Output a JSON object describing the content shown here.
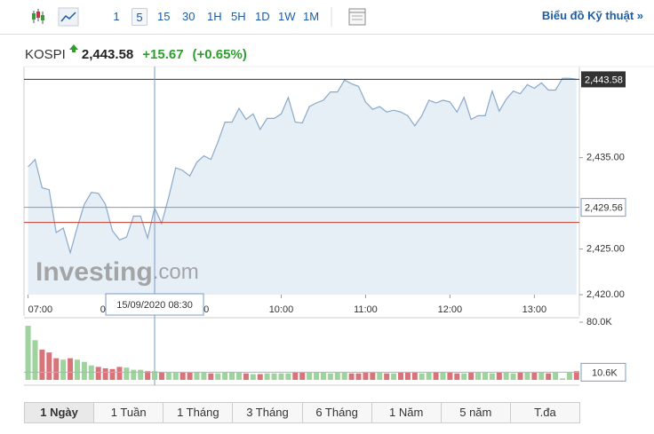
{
  "toolbar": {
    "intervals": [
      "1",
      "5",
      "15",
      "30",
      "1H",
      "5H",
      "1D",
      "1W",
      "1M"
    ],
    "selected_interval": "5",
    "link": "Biểu đồ Kỹ thuật »"
  },
  "header": {
    "symbol": "KOSPI",
    "price": "2,443.58",
    "change": "+15.67",
    "change_pct": "(+0.65%)"
  },
  "chart_data": [
    {
      "type": "area",
      "watermark": [
        "Invest",
        "ing",
        ".com"
      ],
      "color": "#8aa9c9",
      "fill": "#e6eef6",
      "x": [
        420,
        425,
        430,
        435,
        440,
        445,
        450,
        455,
        460,
        465,
        470,
        475,
        480,
        485,
        490,
        495,
        500,
        505,
        510,
        515,
        520,
        525,
        530,
        535,
        540,
        545,
        550,
        555,
        560,
        565,
        570,
        575,
        580,
        585,
        590,
        595,
        600,
        605,
        610,
        615,
        620,
        625,
        630,
        635,
        640,
        645,
        650,
        655,
        660,
        665,
        670,
        675,
        680,
        685,
        690,
        695,
        700,
        705,
        710,
        715,
        720,
        725,
        730,
        735,
        740,
        745,
        750,
        755,
        760,
        765,
        770,
        775,
        780,
        785,
        790,
        795,
        800,
        805,
        810
      ],
      "values": [
        2434.0,
        2434.8,
        2431.7,
        2431.5,
        2426.8,
        2427.3,
        2424.6,
        2427.4,
        2429.9,
        2431.2,
        2431.1,
        2429.9,
        2427.0,
        2426.0,
        2426.3,
        2428.6,
        2428.6,
        2426.2,
        2429.5,
        2427.8,
        2430.7,
        2433.9,
        2433.6,
        2433.0,
        2434.5,
        2435.2,
        2434.8,
        2436.7,
        2438.9,
        2438.9,
        2440.4,
        2439.2,
        2439.8,
        2438.1,
        2439.3,
        2439.3,
        2439.8,
        2441.6,
        2438.9,
        2438.8,
        2440.6,
        2441.0,
        2441.3,
        2442.2,
        2442.2,
        2443.5,
        2443.1,
        2442.8,
        2441.1,
        2440.3,
        2440.6,
        2440.0,
        2440.2,
        2440.0,
        2439.6,
        2438.5,
        2439.6,
        2441.3,
        2441.0,
        2441.3,
        2441.1,
        2440.0,
        2441.6,
        2439.2,
        2439.6,
        2439.6,
        2442.3,
        2440.1,
        2441.4,
        2442.3,
        2442.0,
        2443.0,
        2442.6,
        2443.2,
        2442.4,
        2442.4,
        2443.7,
        2443.7,
        2443.58
      ],
      "xlim": [
        419,
        812
      ],
      "ylim": [
        2420,
        2444.3
      ],
      "xticks": [
        {
          "value": 420,
          "label": "07:00"
        },
        {
          "value": 480,
          "label": "08:00"
        },
        {
          "value": 540,
          "label": "09:00"
        },
        {
          "value": 600,
          "label": "10:00"
        },
        {
          "value": 660,
          "label": "11:00"
        },
        {
          "value": 720,
          "label": "12:00"
        },
        {
          "value": 780,
          "label": "13:00"
        }
      ],
      "yticks": [
        {
          "value": 2420,
          "label": "2,420.00"
        },
        {
          "value": 2425,
          "label": "2,425.00"
        },
        {
          "value": 2435,
          "label": "2,435.00"
        }
      ],
      "last": {
        "value": 2443.58,
        "label": "2,443.58"
      },
      "reference_line": 2427.91,
      "crosshair": {
        "x": 510,
        "x_label": "15/09/2020 08:30",
        "y": {
          "value": 2429.56,
          "label": "2,429.56"
        }
      }
    },
    {
      "type": "bar",
      "up_color": "#9ed39e",
      "down_color": "#d9737a",
      "values": [
        75000,
        55000,
        42000,
        38000,
        30000,
        28000,
        30000,
        28000,
        25000,
        20000,
        18000,
        16000,
        15000,
        18000,
        17000,
        14000,
        14000,
        12000,
        12000,
        11000,
        10000,
        10000,
        10000,
        10000,
        11000,
        10000,
        9000,
        9000,
        10000,
        11000,
        10000,
        9000,
        8000,
        8000,
        9000,
        9000,
        9000,
        9000,
        10000,
        10000,
        10000,
        10000,
        10000,
        9000,
        10000,
        10000,
        9000,
        9000,
        10000,
        10000,
        10000,
        9000,
        9000,
        10000,
        10000,
        10000,
        9000,
        10000,
        11000,
        11000,
        10000,
        9000,
        9000,
        10000,
        10000,
        10000,
        9000,
        10000,
        10000,
        9000,
        10000,
        10000,
        10000,
        10000,
        9000,
        10000,
        2000,
        10000,
        12000
      ],
      "ylim": [
        0,
        80000
      ],
      "yticks": [
        {
          "value": 80000,
          "label": "80.0K"
        }
      ],
      "current": {
        "value": 10600,
        "label": "10.6K"
      }
    }
  ],
  "tabs": [
    "1 Ngày",
    "1 Tuần",
    "1 Tháng",
    "3 Tháng",
    "6 Tháng",
    "1 Năm",
    "5 năm",
    "T.đa"
  ]
}
